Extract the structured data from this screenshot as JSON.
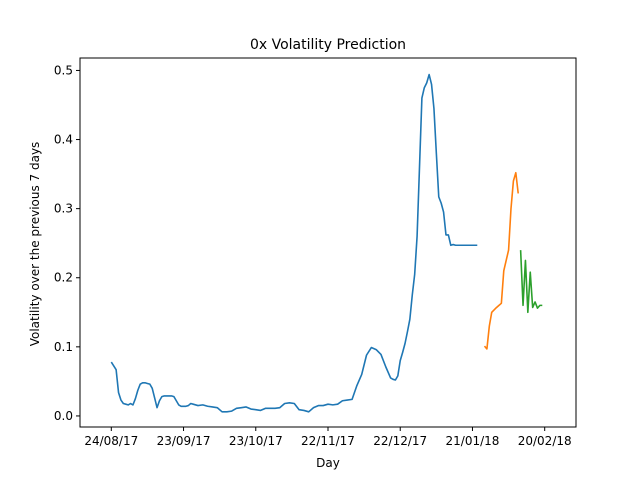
{
  "chart_data": {
    "type": "line",
    "title": "0x Volatility Prediction",
    "xlabel": "Day",
    "ylabel": "Volatility over the previous 7 days",
    "xticks": [
      "24/08/17",
      "23/09/17",
      "23/10/17",
      "22/11/17",
      "22/12/17",
      "21/01/18",
      "20/02/18"
    ],
    "xtick_days": [
      0,
      30,
      60,
      90,
      120,
      150,
      180
    ],
    "xlim_days": [
      -13,
      193
    ],
    "yticks": [
      0.0,
      0.1,
      0.2,
      0.3,
      0.4,
      0.5
    ],
    "yticks_labels": [
      "0.0",
      "0.1",
      "0.2",
      "0.3",
      "0.4",
      "0.5"
    ],
    "ylim": [
      -0.016,
      0.518
    ],
    "grid": false,
    "series": [
      {
        "color": "#1f77b4",
        "x": [
          0,
          2,
          3,
          4,
          5,
          6,
          7,
          8,
          9,
          10,
          11,
          12,
          13,
          14,
          15,
          16,
          17,
          18,
          19,
          20,
          21,
          22,
          23,
          24,
          25,
          26,
          27,
          28,
          29,
          30,
          31,
          32,
          33,
          34,
          36,
          38,
          40,
          42,
          44,
          46,
          48,
          50,
          52,
          54,
          56,
          58,
          60,
          62,
          64,
          66,
          68,
          70,
          72,
          74,
          76,
          78,
          80,
          82,
          84,
          86,
          88,
          90,
          92,
          94,
          96,
          98,
          100,
          102,
          104,
          106,
          108,
          110,
          112,
          114,
          116,
          117,
          118,
          119,
          120,
          121,
          122,
          123,
          124,
          125,
          126,
          127,
          128,
          129,
          130,
          131,
          132,
          133,
          134,
          135,
          136,
          137,
          138,
          139,
          140,
          141,
          142,
          143,
          144,
          145,
          146,
          147,
          148,
          149,
          150,
          151,
          152
        ],
        "y": [
          0.078,
          0.067,
          0.034,
          0.023,
          0.018,
          0.017,
          0.016,
          0.018,
          0.016,
          0.025,
          0.037,
          0.046,
          0.048,
          0.048,
          0.047,
          0.046,
          0.04,
          0.026,
          0.012,
          0.022,
          0.028,
          0.029,
          0.029,
          0.029,
          0.029,
          0.028,
          0.022,
          0.016,
          0.014,
          0.014,
          0.014,
          0.015,
          0.018,
          0.017,
          0.015,
          0.016,
          0.014,
          0.013,
          0.012,
          0.006,
          0.006,
          0.007,
          0.011,
          0.012,
          0.013,
          0.01,
          0.009,
          0.008,
          0.011,
          0.011,
          0.011,
          0.012,
          0.018,
          0.019,
          0.018,
          0.009,
          0.008,
          0.006,
          0.012,
          0.015,
          0.015,
          0.017,
          0.016,
          0.017,
          0.022,
          0.023,
          0.024,
          0.044,
          0.06,
          0.088,
          0.099,
          0.096,
          0.089,
          0.071,
          0.055,
          0.053,
          0.052,
          0.058,
          0.08,
          0.092,
          0.105,
          0.122,
          0.14,
          0.175,
          0.205,
          0.26,
          0.36,
          0.46,
          0.475,
          0.482,
          0.494,
          0.48,
          0.445,
          0.38,
          0.317,
          0.308,
          0.295,
          0.262,
          0.262,
          0.247,
          0.248,
          0.247,
          0.247,
          0.247,
          0.247,
          0.247,
          0.247,
          0.247,
          0.247,
          0.247,
          0.247
        ],
        "visible_days": [
          0,
          152
        ]
      },
      {
        "color": "#ff7f0e",
        "x": [
          155,
          156,
          157,
          158,
          160,
          161,
          162,
          163,
          164,
          165,
          166,
          167,
          168,
          169
        ],
        "y": [
          0.101,
          0.097,
          0.13,
          0.15,
          0.157,
          0.16,
          0.163,
          0.21,
          0.225,
          0.24,
          0.3,
          0.34,
          0.352,
          0.322
        ]
      },
      {
        "color": "#2ca02c",
        "x": [
          170,
          171,
          172,
          173,
          174,
          175,
          176,
          177,
          178,
          179
        ],
        "y": [
          0.24,
          0.16,
          0.225,
          0.15,
          0.208,
          0.157,
          0.165,
          0.156,
          0.16,
          0.16
        ]
      }
    ]
  }
}
